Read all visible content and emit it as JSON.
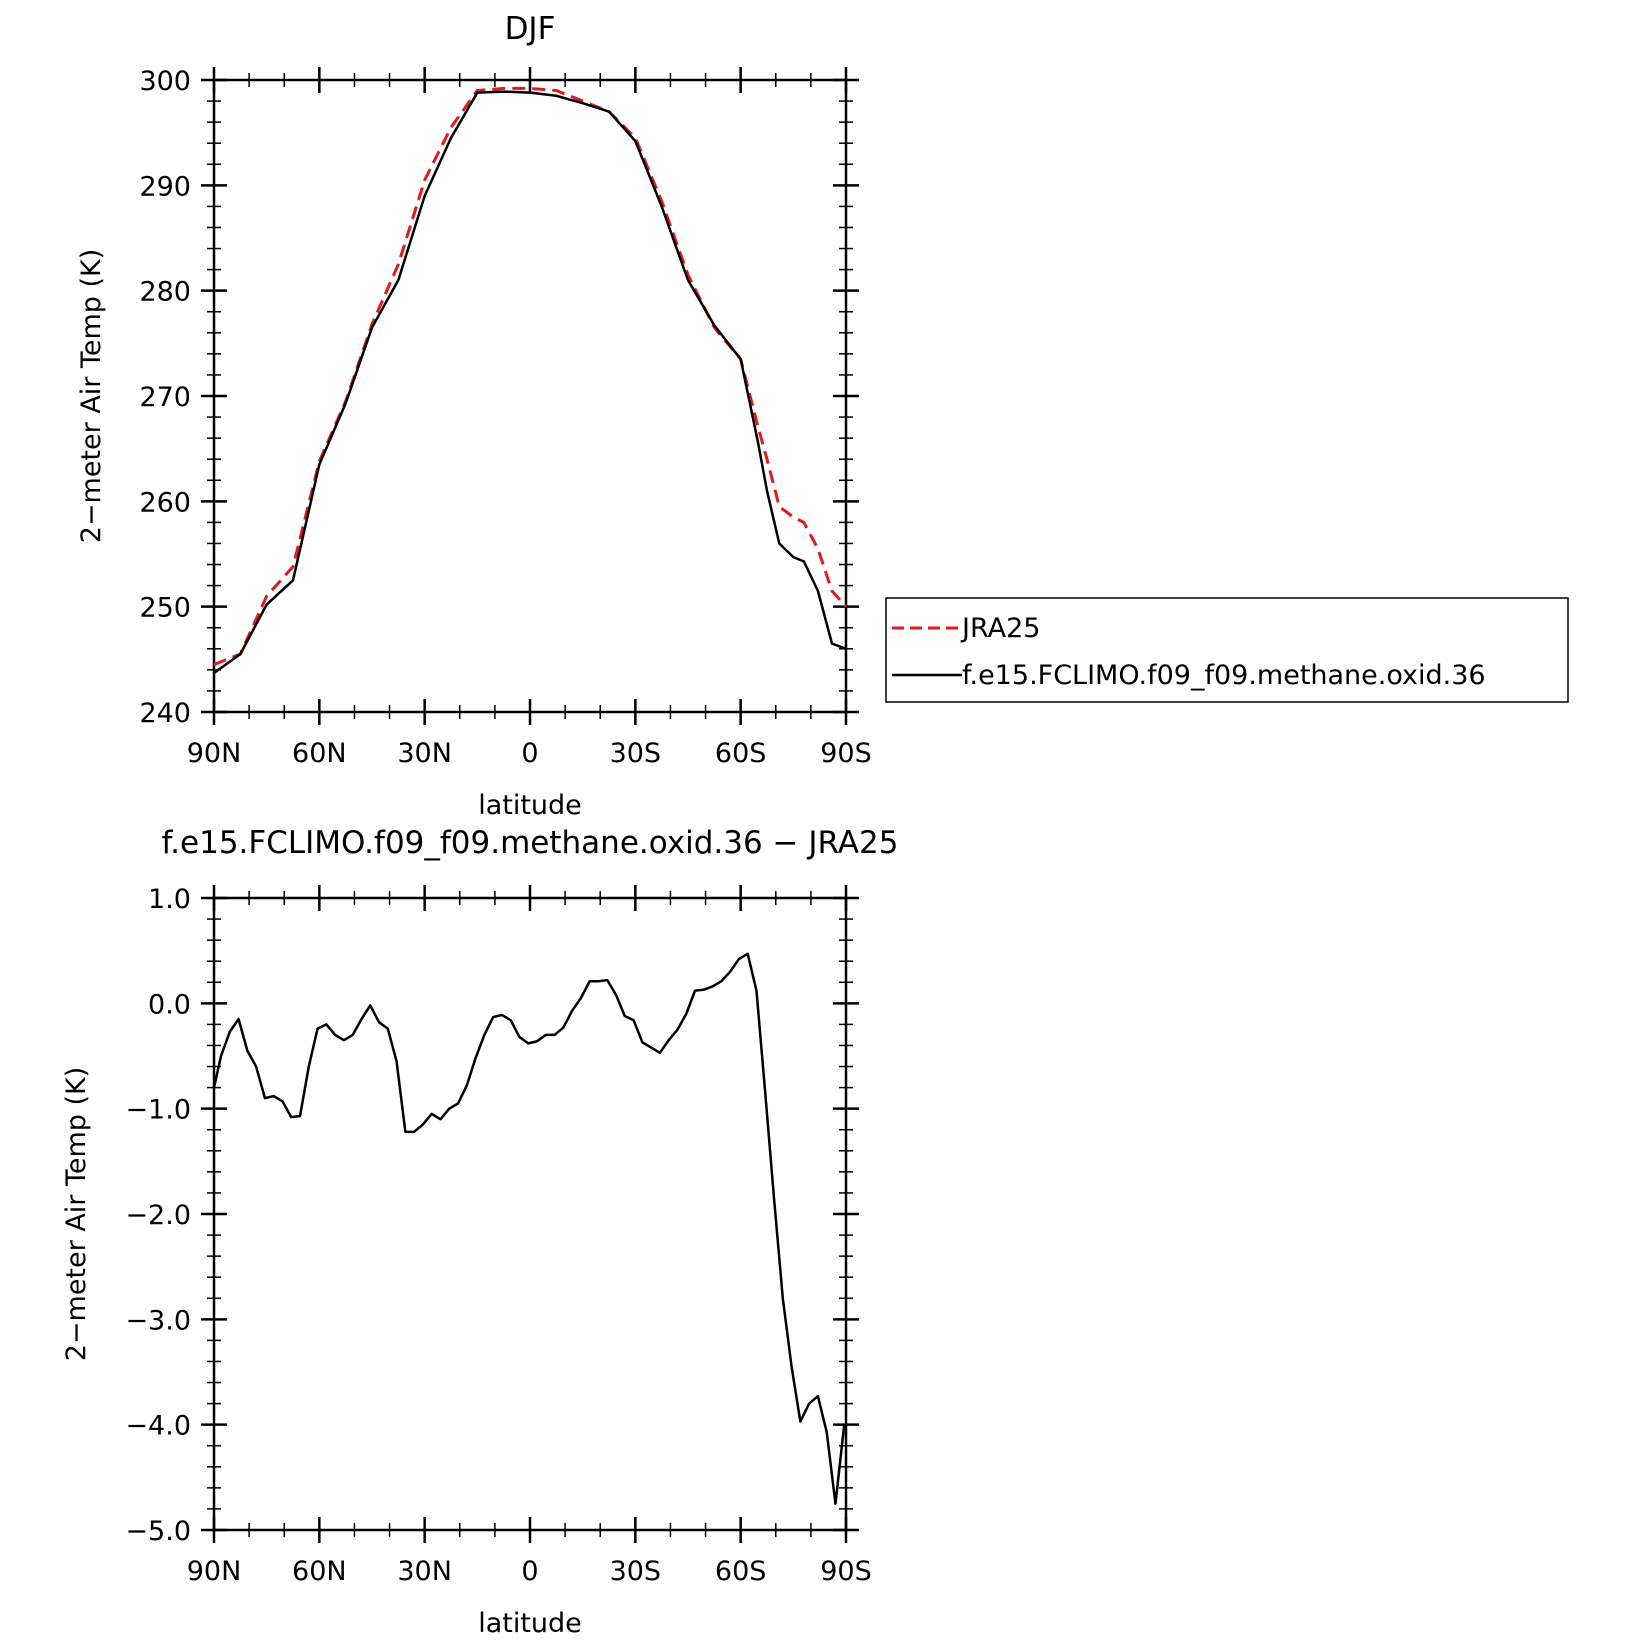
{
  "chart_data": [
    {
      "type": "line",
      "title": "DJF",
      "xlabel": "latitude",
      "ylabel": "2−meter Air Temp (K)",
      "xlim": [
        90,
        -90
      ],
      "ylim": [
        240,
        300
      ],
      "x_ticks": [
        90,
        60,
        30,
        0,
        -30,
        -60,
        -90
      ],
      "x_tick_labels": [
        "90N",
        "60N",
        "30N",
        "0",
        "30S",
        "60S",
        "90S"
      ],
      "y_ticks": [
        240,
        250,
        260,
        270,
        280,
        290,
        300
      ],
      "y_tick_labels": [
        "240",
        "250",
        "260",
        "270",
        "280",
        "290",
        "300"
      ],
      "legend_position": "right",
      "series": [
        {
          "name": "JRA25",
          "color": "#e31a1c",
          "dash": true,
          "x": [
            90,
            82.5,
            75,
            67.5,
            60,
            52.5,
            45,
            37.5,
            30,
            22.5,
            15,
            7.5,
            0,
            -7.5,
            -15,
            -22.5,
            -30,
            -37.5,
            -45,
            -52.5,
            -60,
            -65,
            -67.5,
            -71,
            -75,
            -78,
            -82,
            -86,
            -90
          ],
          "y": [
            244.5,
            245.5,
            251.0,
            253.8,
            263.8,
            269.5,
            276.8,
            282.5,
            290.5,
            295.5,
            299.0,
            299.2,
            299.2,
            299.0,
            298.0,
            297.0,
            294.5,
            288.5,
            281.5,
            276.5,
            273.5,
            267.0,
            264.0,
            259.5,
            258.5,
            258.0,
            255.5,
            251.5,
            250.0
          ]
        },
        {
          "name": "f.e15.FCLIMO.f09_f09.methane.oxid.36",
          "color": "#000000",
          "dash": false,
          "x": [
            90,
            82.5,
            75,
            67.5,
            60,
            52.5,
            45,
            37.5,
            30,
            22.5,
            15,
            7.5,
            0,
            -7.5,
            -15,
            -22.5,
            -30,
            -37.5,
            -45,
            -52.5,
            -60,
            -65,
            -67.5,
            -71,
            -75,
            -78,
            -82,
            -86,
            -90
          ],
          "y": [
            243.7,
            245.5,
            250.2,
            252.5,
            263.5,
            269.3,
            276.5,
            281.0,
            289.0,
            294.5,
            298.8,
            298.9,
            298.8,
            298.5,
            297.8,
            297.0,
            294.2,
            288.0,
            281.0,
            276.7,
            273.5,
            265.5,
            261.0,
            256.0,
            254.7,
            254.3,
            251.5,
            246.5,
            246.0
          ]
        }
      ]
    },
    {
      "type": "line",
      "title": "f.e15.FCLIMO.f09_f09.methane.oxid.36 − JRA25",
      "xlabel": "latitude",
      "ylabel": "2−meter Air Temp (K)",
      "xlim": [
        90,
        -90
      ],
      "ylim": [
        -5.0,
        1.0
      ],
      "x_ticks": [
        90,
        60,
        30,
        0,
        -30,
        -60,
        -90
      ],
      "x_tick_labels": [
        "90N",
        "60N",
        "30N",
        "0",
        "30S",
        "60S",
        "90S"
      ],
      "y_ticks": [
        1.0,
        0.0,
        -1.0,
        -2.0,
        -3.0,
        -4.0,
        -5.0
      ],
      "y_tick_labels": [
        "1.0",
        "0.0",
        "−1.0",
        "−2.0",
        "−3.0",
        "−4.0",
        "−5.0"
      ],
      "series": [
        {
          "color": "#000000",
          "dash": false,
          "x": [
            90,
            88,
            85.5,
            83,
            80.5,
            78,
            75.5,
            73,
            70.5,
            68,
            65.5,
            63,
            60.5,
            58,
            55.5,
            53,
            50.5,
            48,
            45.5,
            43,
            40.5,
            38,
            35.5,
            33,
            30.5,
            28,
            25.5,
            23,
            20.5,
            18,
            15.5,
            13,
            10.5,
            8,
            5.5,
            3,
            0.5,
            -2,
            -4.5,
            -7,
            -9.5,
            -12,
            -14.5,
            -17,
            -19.5,
            -22,
            -24.5,
            -27,
            -29.5,
            -32,
            -34.5,
            -37,
            -39.5,
            -42,
            -44.5,
            -47,
            -49.5,
            -52,
            -54.5,
            -57,
            -59.5,
            -62,
            -64.5,
            -67,
            -69.5,
            -72,
            -74.5,
            -77,
            -79.5,
            -82,
            -84.5,
            -87,
            -89.5
          ],
          "y": [
            -0.8,
            -0.5,
            -0.27,
            -0.15,
            -0.45,
            -0.6,
            -0.9,
            -0.88,
            -0.93,
            -1.08,
            -1.07,
            -0.6,
            -0.24,
            -0.2,
            -0.3,
            -0.35,
            -0.3,
            -0.15,
            -0.02,
            -0.18,
            -0.24,
            -0.55,
            -1.22,
            -1.22,
            -1.15,
            -1.05,
            -1.1,
            -1.0,
            -0.95,
            -0.78,
            -0.52,
            -0.3,
            -0.13,
            -0.11,
            -0.16,
            -0.32,
            -0.38,
            -0.36,
            -0.3,
            -0.3,
            -0.23,
            -0.07,
            0.05,
            0.21,
            0.21,
            0.22,
            0.08,
            -0.12,
            -0.16,
            -0.37,
            -0.42,
            -0.47,
            -0.35,
            -0.25,
            -0.1,
            0.12,
            0.13,
            0.16,
            0.21,
            0.3,
            0.42,
            0.47,
            0.12,
            -0.85,
            -1.85,
            -2.8,
            -3.45,
            -3.97,
            -3.8,
            -3.73,
            -4.07,
            -4.75,
            -4.0
          ]
        }
      ]
    }
  ]
}
